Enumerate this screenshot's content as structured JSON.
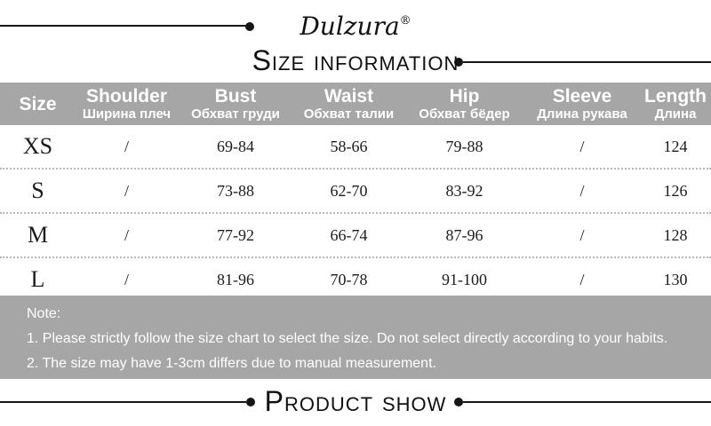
{
  "brand": {
    "name": "Dulzura",
    "reg_mark": "®"
  },
  "section_titles": {
    "size_information": "Size Information",
    "product_show": "Product Show"
  },
  "size_table": {
    "columns": [
      {
        "en": "Size",
        "ru": ""
      },
      {
        "en": "Shoulder",
        "ru": "Ширина плеч"
      },
      {
        "en": "Bust",
        "ru": "Обхват груди"
      },
      {
        "en": "Waist",
        "ru": "Обхват талии"
      },
      {
        "en": "Hip",
        "ru": "Обхват бёдер"
      },
      {
        "en": "Sleeve",
        "ru": "Длина рукава"
      },
      {
        "en": "Length",
        "ru": "Длина"
      }
    ],
    "rows": [
      {
        "size": "XS",
        "shoulder": "/",
        "bust": "69-84",
        "waist": "58-66",
        "hip": "79-88",
        "sleeve": "/",
        "length": "124"
      },
      {
        "size": "S",
        "shoulder": "/",
        "bust": "73-88",
        "waist": "62-70",
        "hip": "83-92",
        "sleeve": "/",
        "length": "126"
      },
      {
        "size": "M",
        "shoulder": "/",
        "bust": "77-92",
        "waist": "66-74",
        "hip": "87-96",
        "sleeve": "/",
        "length": "128"
      },
      {
        "size": "L",
        "shoulder": "/",
        "bust": "81-96",
        "waist": "70-78",
        "hip": "91-100",
        "sleeve": "/",
        "length": "130"
      }
    ]
  },
  "note": {
    "heading": "Note:",
    "lines": [
      "1. Please strictly follow the size chart to select the size. Do not select directly according to your habits.",
      "2. The size may have 1-3cm differs due to manual measurement."
    ]
  },
  "colors": {
    "header_bg": "#a6a6a6",
    "note_bg": "#a6a6a6",
    "text": "#1a1a1a",
    "note_text": "#ffffff",
    "row_divider": "#b8b8b8",
    "decor": "#161616"
  }
}
